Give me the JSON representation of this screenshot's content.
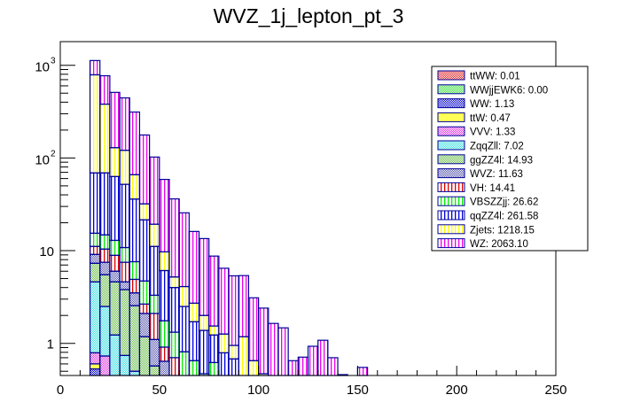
{
  "chart_data": {
    "type": "bar",
    "subtype": "stacked-histogram",
    "title": "WVZ_1j_lepton_pt_3",
    "xlabel": "",
    "ylabel": "",
    "xlim": [
      0,
      250
    ],
    "ylim": [
      0.45,
      1800
    ],
    "yscale": "log",
    "grid": false,
    "legend_position": "top-right",
    "x_ticks": [
      "0",
      "50",
      "100",
      "150",
      "200",
      "250"
    ],
    "x_tick_values": [
      0,
      50,
      100,
      150,
      200,
      250
    ],
    "y_ticks": [
      {
        "value": 1,
        "label": "1"
      },
      {
        "value": 10,
        "label": "10"
      },
      {
        "value": 100,
        "base": "10",
        "exp": "2"
      },
      {
        "value": 1000,
        "base": "10",
        "exp": "3"
      }
    ],
    "bin_edges_start": 15,
    "bin_width": 5,
    "stack_order_bottom_to_top": [
      "WW",
      "ttWW",
      "WWjjEWK6",
      "ttW",
      "VVV",
      "ZqqZll",
      "ggZZ4l",
      "WVZ",
      "VH",
      "VBSZZjj",
      "qqZZ4l",
      "Zjets",
      "WZ"
    ],
    "series": [
      {
        "name": "WW",
        "legend": "WW: 1.13",
        "color": "#0000cc",
        "fill": "checker",
        "values": [
          0.53,
          0,
          0,
          0,
          0,
          0,
          0,
          0,
          0,
          0,
          0,
          0,
          0,
          0,
          0,
          0,
          0,
          0,
          0,
          0,
          0,
          0,
          0,
          0,
          0,
          0,
          0,
          0
        ]
      },
      {
        "name": "ttWW",
        "legend": "ttWW: 0.01",
        "color": "#e02020",
        "fill": "checker",
        "values": [
          0,
          0,
          0,
          0,
          0,
          0,
          0,
          0,
          0,
          0,
          0,
          0,
          0,
          0,
          0,
          0,
          0,
          0,
          0,
          0,
          0,
          0,
          0,
          0,
          0,
          0,
          0,
          0
        ]
      },
      {
        "name": "WWjjEWK6",
        "legend": "WWjjEWK6: 0.00",
        "color": "#33dd33",
        "fill": "checker",
        "values": [
          0,
          0,
          0,
          0,
          0,
          0,
          0,
          0,
          0,
          0,
          0,
          0,
          0,
          0,
          0,
          0,
          0,
          0,
          0,
          0,
          0,
          0,
          0,
          0,
          0,
          0,
          0,
          0
        ]
      },
      {
        "name": "ttW",
        "legend": "ttW: 0.47",
        "color": "#ffff55",
        "fill": "solid",
        "values": [
          0.07,
          0,
          0,
          0,
          0,
          0,
          0,
          0,
          0,
          0,
          0,
          0,
          0,
          0,
          0,
          0,
          0,
          0,
          0,
          0,
          0,
          0,
          0,
          0,
          0,
          0,
          0,
          0
        ]
      },
      {
        "name": "VVV",
        "legend": "VVV: 1.33",
        "color": "#dd33dd",
        "fill": "checker",
        "values": [
          0.19,
          0.73,
          0,
          0,
          0,
          0,
          0,
          0,
          0,
          0,
          0,
          0,
          0,
          0,
          0,
          0,
          0,
          0,
          0,
          0,
          0,
          0,
          0,
          0,
          0,
          0,
          0,
          0
        ]
      },
      {
        "name": "ZqqZll",
        "legend": "ZqqZll: 7.02",
        "color": "#33dddd",
        "fill": "checker",
        "values": [
          3.81,
          1.77,
          1.23,
          0.74,
          0.5,
          0,
          0,
          0,
          0,
          0,
          0,
          0,
          0,
          0,
          0,
          0,
          0,
          0,
          0,
          0,
          0,
          0,
          0,
          0,
          0,
          0,
          0,
          0
        ]
      },
      {
        "name": "ggZZ4l",
        "legend": "ggZZ4l: 14.93",
        "color": "#66bb44",
        "fill": "checker",
        "values": [
          2.7,
          3.0,
          3.37,
          3.06,
          2.05,
          1.18,
          0.57,
          0.4,
          0,
          0,
          0,
          0,
          0,
          0,
          0,
          0,
          0,
          0,
          0,
          0,
          0,
          0,
          0,
          0,
          0,
          0,
          0,
          0
        ]
      },
      {
        "name": "WVZ",
        "legend": "WVZ: 11.63",
        "color": "#5555aa",
        "fill": "checker",
        "values": [
          1.8,
          2.0,
          1.4,
          0.8,
          0.95,
          0.92,
          0.53,
          0.24,
          0,
          0,
          0,
          0,
          0,
          0,
          0,
          0,
          0,
          0,
          0,
          0,
          0,
          0,
          0,
          0,
          0,
          0,
          0,
          0
        ]
      },
      {
        "name": "VH",
        "legend": "VH: 14.41",
        "color": "#dd0000",
        "fill": "stripes",
        "values": [
          2.0,
          2.9,
          2.9,
          2.9,
          1.4,
          0.55,
          1.0,
          0.27,
          0.7,
          0,
          0,
          0,
          0,
          0,
          0,
          0,
          0,
          0,
          0,
          0,
          0,
          0,
          0,
          0,
          0,
          0,
          0,
          0
        ]
      },
      {
        "name": "VBSZZjj",
        "legend": "VBSZZjj: 26.62",
        "color": "#00ee00",
        "fill": "stripes",
        "values": [
          4.3,
          4.4,
          4.0,
          3.3,
          2.7,
          2.05,
          1.2,
          0.84,
          0.62,
          0.81,
          0.65,
          0.47,
          0.62,
          0,
          0,
          0,
          0,
          0,
          0,
          0,
          0,
          0,
          0,
          0,
          0,
          0,
          0,
          0
        ]
      },
      {
        "name": "qqZZ4l",
        "legend": "qqZZ4l: 261.58",
        "color": "#0000dd",
        "fill": "stripes",
        "values": [
          53.6,
          54.2,
          50.1,
          41.2,
          28.4,
          16.8,
          7.8,
          4.35,
          2.68,
          1.69,
          1.06,
          0.91,
          0.61,
          0.79,
          0.68,
          0.45,
          0,
          0,
          0,
          0,
          0,
          0,
          0,
          0,
          0,
          0,
          0,
          0
        ]
      },
      {
        "name": "Zjets",
        "legend": "Zjets: 1218.15",
        "color": "#ffff00",
        "fill": "stripes",
        "values": [
          720,
          312,
          66,
          69,
          30,
          10.5,
          8.2,
          3.6,
          1.2,
          1.6,
          1.0,
          0.62,
          0.31,
          0.47,
          0.27,
          0.73,
          0.65,
          0.47,
          0,
          0,
          0,
          0,
          0,
          0,
          0,
          0,
          0,
          0
        ]
      },
      {
        "name": "WZ",
        "legend": "WZ: 2063.10",
        "color": "#ee00ee",
        "fill": "stripes",
        "values": [
          336,
          390,
          381,
          324,
          247,
          145,
          83,
          49,
          31,
          21.5,
          13.4,
          11.5,
          7.2,
          5.2,
          4.4,
          4.2,
          2.45,
          1.93,
          1.64,
          1.47,
          0.65,
          0.71,
          0.93,
          1.08,
          0.7,
          0.46,
          0,
          0.55
        ]
      }
    ],
    "legend_order": [
      "ttWW",
      "WWjjEWK6",
      "WW",
      "ttW",
      "VVV",
      "ZqqZll",
      "ggZZ4l",
      "WVZ",
      "VH",
      "VBSZZjj",
      "qqZZ4l",
      "Zjets",
      "WZ"
    ]
  }
}
